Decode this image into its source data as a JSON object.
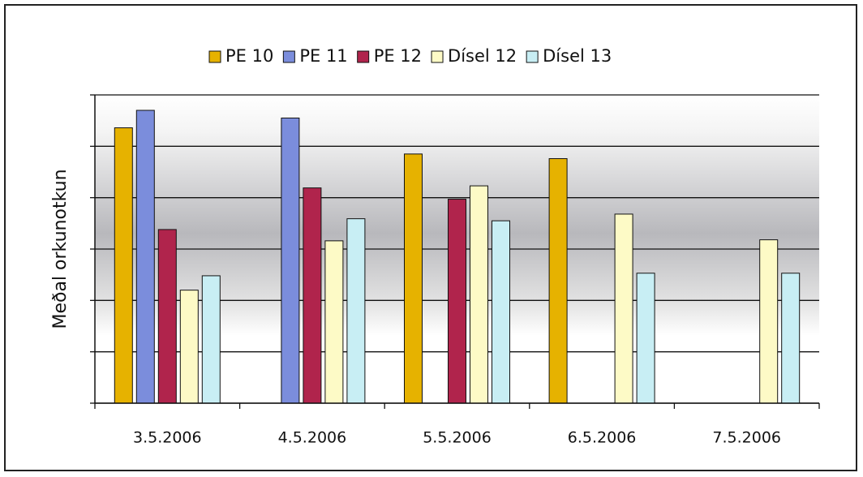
{
  "chart_data": {
    "type": "bar",
    "y_label": "Meðal orkunotkun",
    "categories": [
      "3.5.2006",
      "4.5.2006",
      "5.5.2006",
      "6.5.2006",
      "7.5.2006"
    ],
    "series": [
      {
        "name": "PE 10",
        "color": "#e6b200",
        "values": [
          5.36,
          null,
          4.85,
          4.76,
          null
        ]
      },
      {
        "name": "PE 11",
        "color": "#7b8ddc",
        "values": [
          5.7,
          5.55,
          null,
          null,
          null
        ]
      },
      {
        "name": "PE 12",
        "color": "#b0244c",
        "values": [
          3.38,
          4.19,
          3.97,
          null,
          null
        ]
      },
      {
        "name": "Dísel 12",
        "color": "#fdfac6",
        "values": [
          2.2,
          3.16,
          4.23,
          3.68,
          3.18
        ]
      },
      {
        "name": "Dísel 13",
        "color": "#c8eef4",
        "values": [
          2.48,
          3.59,
          3.55,
          2.53,
          2.53
        ]
      }
    ],
    "ylim": [
      0,
      6
    ],
    "yticks": [
      0,
      1,
      2,
      3,
      4,
      5,
      6
    ],
    "grid": true,
    "legend": "top"
  }
}
